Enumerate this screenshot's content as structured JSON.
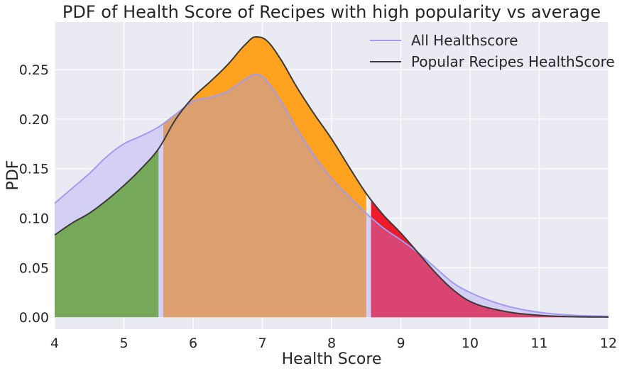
{
  "chart_data": {
    "type": "area",
    "title": "PDF of Health Score of Recipes with high popularity vs average",
    "xlabel": "Health Score",
    "ylabel": "PDF",
    "xlim": [
      4,
      12
    ],
    "ylim": [
      -0.012,
      0.298
    ],
    "x_ticks": [
      4,
      5,
      6,
      7,
      8,
      9,
      10,
      11,
      12
    ],
    "y_ticks": [
      0.0,
      0.05,
      0.1,
      0.15,
      0.2,
      0.25
    ],
    "x_tick_labels": [
      "4",
      "5",
      "6",
      "7",
      "8",
      "9",
      "10",
      "11",
      "12"
    ],
    "y_tick_labels": [
      "0.00",
      "0.05",
      "0.10",
      "0.15",
      "0.20",
      "0.25"
    ],
    "grid": true,
    "legend_position": "top-right",
    "series": [
      {
        "name": "All Healthscore",
        "color": "#a29bf0",
        "fill": "#d3cff5",
        "x": [
          4.0,
          4.25,
          4.5,
          4.75,
          5.0,
          5.25,
          5.5,
          5.75,
          6.0,
          6.25,
          6.5,
          6.75,
          6.9,
          7.0,
          7.25,
          7.5,
          7.75,
          8.0,
          8.25,
          8.5,
          8.75,
          9.0,
          9.25,
          9.5,
          9.75,
          10.0,
          10.5,
          11.0,
          11.5,
          12.0
        ],
        "y": [
          0.115,
          0.13,
          0.145,
          0.162,
          0.175,
          0.183,
          0.192,
          0.205,
          0.218,
          0.222,
          0.228,
          0.24,
          0.245,
          0.243,
          0.22,
          0.19,
          0.163,
          0.14,
          0.122,
          0.105,
          0.09,
          0.078,
          0.065,
          0.05,
          0.035,
          0.025,
          0.012,
          0.005,
          0.002,
          0.001
        ]
      },
      {
        "name": "Popular Recipes HealthScore",
        "color": "#3a3a3a",
        "x": [
          4.0,
          4.25,
          4.5,
          4.75,
          5.0,
          5.25,
          5.5,
          5.75,
          6.0,
          6.25,
          6.5,
          6.75,
          6.9,
          7.05,
          7.25,
          7.5,
          7.75,
          8.0,
          8.25,
          8.5,
          8.75,
          9.0,
          9.25,
          9.5,
          9.75,
          10.0,
          10.5,
          11.0,
          11.5,
          12.0
        ],
        "y": [
          0.083,
          0.095,
          0.105,
          0.118,
          0.133,
          0.15,
          0.17,
          0.2,
          0.222,
          0.238,
          0.255,
          0.275,
          0.283,
          0.28,
          0.262,
          0.232,
          0.205,
          0.18,
          0.152,
          0.125,
          0.103,
          0.085,
          0.065,
          0.045,
          0.028,
          0.016,
          0.006,
          0.002,
          0.0005,
          0.0002
        ]
      }
    ],
    "shaded_regions": [
      {
        "x_from": 4.0,
        "x_to": 5.5,
        "color": "#76a85a",
        "under": "Popular Recipes HealthScore"
      },
      {
        "x_from": 5.57,
        "x_to": 8.5,
        "color": "#ffa220",
        "under": "Popular Recipes HealthScore"
      },
      {
        "x_from": 5.57,
        "x_to": 8.5,
        "color": "#dc9f70",
        "under": "All Healthscore"
      },
      {
        "x_from": 8.57,
        "x_to": 12.0,
        "color": "#ee1b2a",
        "under": "Popular Recipes HealthScore"
      },
      {
        "x_from": 8.57,
        "x_to": 12.0,
        "color": "#d94470",
        "under": "min"
      }
    ]
  }
}
